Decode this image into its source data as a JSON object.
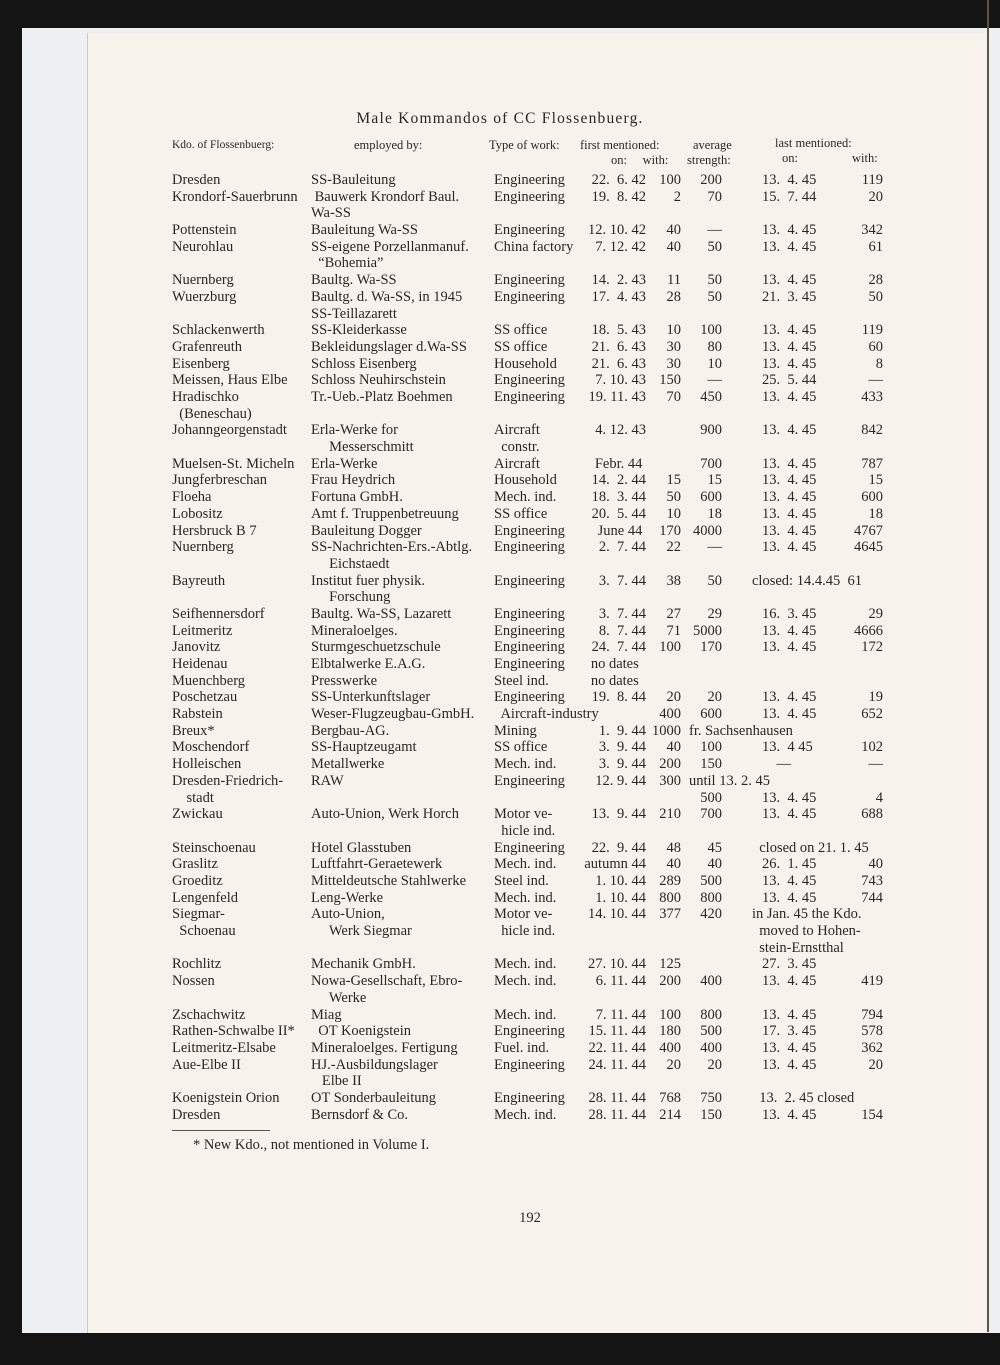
{
  "title": "Male Kommandos of CC Flossenbuerg.",
  "headers": {
    "kdo": "Kdo. of Flossenbuerg:",
    "employed": "employed by:",
    "type": "Type of work:",
    "first": "first mentioned:",
    "first_sub": "on:     with:",
    "average": "average",
    "average_sub": "strength:",
    "last": "last mentioned:",
    "last_on": "on:",
    "last_with": "with:"
  },
  "rows": [
    {
      "n": "Dresden",
      "e": "SS-Bauleitung",
      "t": "Engineering",
      "fo": "22.  6. 42",
      "fw": "100",
      "a": "200",
      "lo": "13.  4. 45",
      "lw": "119"
    },
    {
      "n": "Krondorf-Sauerbrunn",
      "e": " Bauwerk Krondorf Baul.\nWa-SS",
      "t": "Engineering",
      "fo": "19.  8. 42",
      "fw": "2",
      "a": "70",
      "lo": "15.  7. 44",
      "lw": "20"
    },
    {
      "n": "Pottenstein",
      "e": "Bauleitung Wa-SS",
      "t": "Engineering",
      "fo": "12. 10. 42",
      "fw": "40",
      "a": "—",
      "lo": "13.  4. 45",
      "lw": "342"
    },
    {
      "n": "Neurohlau",
      "e": "SS-eigene Porzellanmanuf.\n  “Bohemia”",
      "t": "China factory",
      "fo": "7. 12. 42",
      "fw": "40",
      "a": "50",
      "lo": "13.  4. 45",
      "lw": "61"
    },
    {
      "n": "Nuernberg",
      "e": "Baultg. Wa-SS",
      "t": "Engineering",
      "fo": "14.  2. 43",
      "fw": "11",
      "a": "50",
      "lo": "13.  4. 45",
      "lw": "28"
    },
    {
      "n": "Wuerzburg",
      "e": "Baultg. d. Wa-SS, in 1945\nSS-Teillazarett",
      "t": "Engineering",
      "fo": "17.  4. 43",
      "fw": "28",
      "a": "50",
      "lo": "21.  3. 45",
      "lw": "50"
    },
    {
      "n": "Schlackenwerth",
      "e": "SS-Kleiderkasse",
      "t": "SS office",
      "fo": "18.  5. 43",
      "fw": "10",
      "a": "100",
      "lo": "13.  4. 45",
      "lw": "119"
    },
    {
      "n": "Grafenreuth",
      "e": "Bekleidungslager d.Wa-SS",
      "t": "SS office",
      "fo": "21.  6. 43",
      "fw": "30",
      "a": "80",
      "lo": "13.  4. 45",
      "lw": "60"
    },
    {
      "n": "Eisenberg",
      "e": "Schloss Eisenberg",
      "t": "Household",
      "fo": "21.  6. 43",
      "fw": "30",
      "a": "10",
      "lo": "13.  4. 45",
      "lw": "8"
    },
    {
      "n": "Meissen, Haus Elbe",
      "e": "Schloss Neuhirschstein",
      "t": "Engineering",
      "fo": "7. 10. 43",
      "fw": "150",
      "a": "—",
      "lo": "25.  5. 44",
      "lw": "—"
    },
    {
      "n": "Hradischko\n  (Beneschau)",
      "e": "Tr.-Ueb.-Platz Boehmen",
      "t": "Engineering",
      "fo": "19. 11. 43",
      "fw": "70",
      "a": "450",
      "lo": "13.  4. 45",
      "lw": "433"
    },
    {
      "n": "Johanngeorgenstadt",
      "e": "Erla-Werke for\n     Messerschmitt",
      "t": "Aircraft\n  constr.",
      "fo": "4. 12. 43",
      "fw": "",
      "a": "900",
      "lo": "13.  4. 45",
      "lw": "842"
    },
    {
      "n": "Muelsen-St. Micheln",
      "e": "Erla-Werke",
      "t": "Aircraft",
      "fo": "Febr. 44 ",
      "fw": "",
      "a": "700",
      "lo": "13.  4. 45",
      "lw": "787"
    },
    {
      "n": "Jungferbreschan",
      "e": "Frau Heydrich",
      "t": "Household",
      "fo": "14.  2. 44",
      "fw": "15",
      "a": "15",
      "lo": "13.  4. 45",
      "lw": "15"
    },
    {
      "n": "Floeha",
      "e": "Fortuna GmbH.",
      "t": "Mech. ind.",
      "fo": "18.  3. 44",
      "fw": "50",
      "a": "600",
      "lo": "13.  4. 45",
      "lw": "600"
    },
    {
      "n": "Lobositz",
      "e": "Amt f. Truppenbetreuung",
      "t": "SS office",
      "fo": "20.  5. 44",
      "fw": "10",
      "a": "18",
      "lo": "13.  4. 45",
      "lw": "18"
    },
    {
      "n": "Hersbruck B 7",
      "e": "Bauleitung Dogger",
      "t": "Engineering",
      "fo": "June 44 ",
      "fw": "170",
      "a": "4000",
      "lo": "13.  4. 45",
      "lw": "4767"
    },
    {
      "n": "Nuernberg",
      "e": "SS-Nachrichten-Ers.-Abtlg.\n     Eichstaedt",
      "t": "Engineering",
      "fo": "2.  7. 44",
      "fw": "22",
      "a": "—",
      "lo": "13.  4. 45",
      "lw": "4645"
    },
    {
      "n": "Bayreuth",
      "e": "Institut fuer physik.\n     Forschung",
      "t": "Engineering",
      "fo": "3.  7. 44",
      "fw": "38",
      "a": "50",
      "ln": "closed: 14.4.45  61"
    },
    {
      "n": "Seifhennersdorf",
      "e": "Baultg. Wa-SS, Lazarett",
      "t": "Engineering",
      "fo": "3.  7. 44",
      "fw": "27",
      "a": "29",
      "lo": "16.  3. 45",
      "lw": "29"
    },
    {
      "n": "Leitmeritz",
      "e": "Mineraloelges.",
      "t": "Engineering",
      "fo": "8.  7. 44",
      "fw": "71",
      "a": "5000",
      "lo": "13.  4. 45",
      "lw": "4666"
    },
    {
      "n": "Janovitz",
      "e": "Sturmgeschuetzschule",
      "t": "Engineering",
      "fo": "24.  7. 44",
      "fw": "100",
      "a": "170",
      "lo": "13.  4. 45",
      "lw": "172"
    },
    {
      "n": "Heidenau",
      "e": "Elbtalwerke E.A.G.",
      "t": "Engineering",
      "fo": "no dates  ",
      "fw": "",
      "a": "",
      "lo": "",
      "lw": ""
    },
    {
      "n": "Muenchberg",
      "e": "Presswerke",
      "t": "Steel ind.",
      "fo": "no dates  ",
      "fw": "",
      "a": "",
      "lo": "",
      "lw": ""
    },
    {
      "n": "Poschetzau",
      "e": "SS-Unterkunftslager",
      "t": "Engineering",
      "fo": "19.  8. 44",
      "fw": "20",
      "a": "20",
      "lo": "13.  4. 45",
      "lw": "19"
    },
    {
      "n": "Rabstein",
      "e": "Weser-Flugzeugbau-GmbH.",
      "t": "  Aircraft-industry",
      "fo": "",
      "fw": "400",
      "a": "600",
      "lo": "13.  4. 45",
      "lw": "652"
    },
    {
      "n": "Breux*",
      "e": "Bergbau-AG.",
      "t": "Mining",
      "fo": "1.  9. 44",
      "fw": "1000",
      "a": "",
      "note": "fr. Sachsenhausen"
    },
    {
      "n": "Moschendorf",
      "e": "SS-Hauptzeugamt",
      "t": "SS office",
      "fo": "3.  9. 44",
      "fw": "40",
      "a": "100",
      "lo": "13.  4 45",
      "lw": "102"
    },
    {
      "n": "Holleischen",
      "e": "Metallwerke",
      "t": "Mech. ind.",
      "fo": "3.  9. 44",
      "fw": "200",
      "a": "150",
      "lo": "    —",
      "lw": "—"
    },
    {
      "n": "Dresden-Friedrich-\n    stadt",
      "e": "RAW",
      "t": "Engineering",
      "fo": "12. 9. 44",
      "fw": "300",
      "a": "\n500",
      "note": "until 13. 2. 45",
      "lo": "\n13.  4. 45",
      "lw": "\n4"
    },
    {
      "n": "Zwickau",
      "e": "Auto-Union, Werk Horch",
      "t": "Motor ve-\n  hicle ind.",
      "fo": "13.  9. 44",
      "fw": "210",
      "a": "700",
      "lo": "13.  4. 45",
      "lw": "688"
    },
    {
      "n": "Steinschoenau",
      "e": "Hotel Glasstuben",
      "t": "Engineering",
      "fo": "22.  9. 44",
      "fw": "48",
      "a": "45",
      "ln": "  closed on 21. 1. 45"
    },
    {
      "n": "Graslitz",
      "e": "Luftfahrt-Geraetewerk",
      "t": "Mech. ind.",
      "fo": "autumn 44",
      "fw": "40",
      "a": "40",
      "lo": "26.  1. 45",
      "lw": "40"
    },
    {
      "n": "Groeditz",
      "e": "Mitteldeutsche Stahlwerke",
      "t": "Steel ind.",
      "fo": "1. 10. 44",
      "fw": "289",
      "a": "500",
      "lo": "13.  4. 45",
      "lw": "743"
    },
    {
      "n": "Lengenfeld",
      "e": "Leng-Werke",
      "t": "Mech. ind.",
      "fo": "1. 10. 44",
      "fw": "800",
      "a": "800",
      "lo": "13.  4. 45",
      "lw": "744"
    },
    {
      "n": "Siegmar-\n  Schoenau",
      "e": "Auto-Union,\n     Werk Siegmar",
      "t": "Motor ve-\n  hicle ind.",
      "fo": "14. 10. 44",
      "fw": "377",
      "a": "420",
      "ln": "in Jan. 45 the Kdo.\n  moved to Hohen-\n  stein-Ernstthal"
    },
    {
      "n": "Rochlitz",
      "e": "Mechanik GmbH.",
      "t": "Mech. ind.",
      "fo": "27. 10. 44",
      "fw": "125",
      "a": "",
      "lo": "27.  3. 45",
      "lw": ""
    },
    {
      "n": "Nossen",
      "e": "Nowa-Gesellschaft, Ebro-\n     Werke",
      "t": "Mech. ind.",
      "fo": "6. 11. 44",
      "fw": "200",
      "a": "400",
      "lo": "13.  4. 45",
      "lw": "419"
    },
    {
      "n": "Zschachwitz",
      "e": "Miag",
      "t": "Mech. ind.",
      "fo": "7. 11. 44",
      "fw": "100",
      "a": "800",
      "lo": "13.  4. 45",
      "lw": "794"
    },
    {
      "n": "Rathen-Schwalbe II*",
      "e": "  OT Koenigstein",
      "t": "Engineering",
      "fo": "15. 11. 44",
      "fw": "180",
      "a": "500",
      "lo": "17.  3. 45",
      "lw": "578"
    },
    {
      "n": "Leitmeritz-Elsabe",
      "e": "Mineraloelges. Fertigung",
      "t": "Fuel. ind.",
      "fo": "22. 11. 44",
      "fw": "400",
      "a": "400",
      "lo": "13.  4. 45",
      "lw": "362"
    },
    {
      "n": "Aue-Elbe II",
      "e": "HJ.-Ausbildungslager\n   Elbe II",
      "t": "Engineering",
      "fo": "24. 11. 44",
      "fw": "20",
      "a": "20",
      "lo": "13.  4. 45",
      "lw": "20"
    },
    {
      "n": "Koenigstein Orion",
      "e": "OT Sonderbauleitung",
      "t": "Engineering",
      "fo": "28. 11. 44",
      "fw": "768",
      "a": "750",
      "ln": "  13.  2. 45 closed"
    },
    {
      "n": "Dresden",
      "e": "Bernsdorf & Co.",
      "t": "Mech. ind.",
      "fo": "28. 11. 44",
      "fw": "214",
      "a": "150",
      "lo": "13.  4. 45",
      "lw": "154"
    }
  ],
  "footnote": "* New Kdo., not mentioned in Volume I.",
  "page_number": "192"
}
